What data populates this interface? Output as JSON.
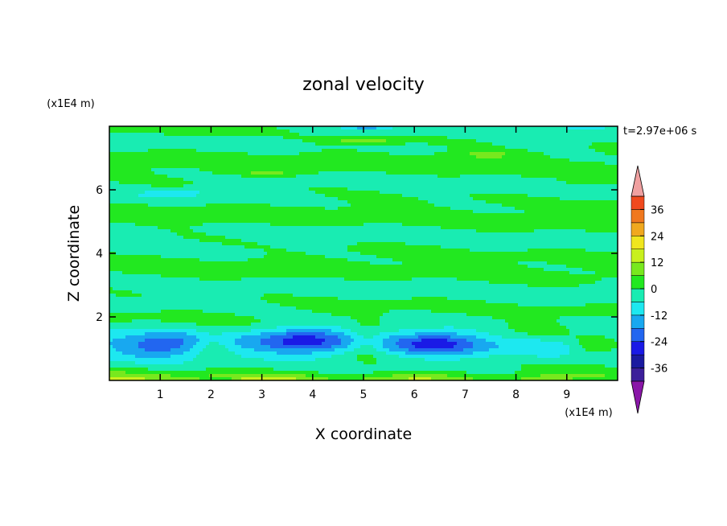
{
  "chart_data": {
    "type": "contour",
    "title": "zonal velocity",
    "xlabel": "X coordinate",
    "ylabel": "Z coordinate",
    "x_unit_label": "(x1E4 m)",
    "y_unit_label": "(x1E4 m)",
    "time_label": "t=2.97e+06 s",
    "xlim": [
      0,
      10
    ],
    "ylim": [
      0,
      8
    ],
    "x_ticks": [
      1,
      2,
      3,
      4,
      5,
      6,
      7,
      8,
      9
    ],
    "x_tick_labels": [
      "1",
      "2",
      "3",
      "4",
      "5",
      "6",
      "7",
      "8",
      "9"
    ],
    "y_ticks": [
      2,
      4,
      6
    ],
    "y_tick_labels": [
      "2",
      "4",
      "6"
    ],
    "colorbar": {
      "levels": [
        -42,
        -36,
        -30,
        -24,
        -18,
        -12,
        -6,
        0,
        6,
        12,
        18,
        24,
        30,
        36,
        42
      ],
      "tick_values": [
        36,
        24,
        12,
        0,
        -12,
        -24,
        -36
      ],
      "tick_labels": [
        "36",
        "24",
        "12",
        "0",
        "-12",
        "-24",
        "-36"
      ],
      "colors": [
        "#7a1fa0",
        "#3c1f9a",
        "#1a1aa0",
        "#1a1ae6",
        "#2266f0",
        "#18a8f0",
        "#1de8f0",
        "#19ecb2",
        "#22e820",
        "#78e81e",
        "#c8f01e",
        "#f0e61e",
        "#f0a81e",
        "#f0781e",
        "#f04a1e",
        "#e61e1e"
      ],
      "over_color": "#f0a0a0",
      "under_color": "#8a16a8",
      "extend": "both"
    },
    "field_summary": {
      "description_bands": [
        {
          "z": [
            0.0,
            0.25
          ],
          "value": 10
        },
        {
          "z": [
            0.25,
            2.0
          ],
          "value": -6
        },
        {
          "z": [
            2.0,
            8.0
          ],
          "value": 0
        }
      ],
      "features": [
        {
          "x": 1.0,
          "z": 1.1,
          "value": -13
        },
        {
          "x": 2.0,
          "z": 1.05,
          "value": 7
        },
        {
          "x": 3.8,
          "z": 1.3,
          "value": -15
        },
        {
          "x": 5.1,
          "z": 1.2,
          "value": 7
        },
        {
          "x": 6.5,
          "z": 1.2,
          "value": -15
        },
        {
          "x": 9.5,
          "z": 1.2,
          "value": 12
        },
        {
          "x": 5.0,
          "z": 7.5,
          "value": 10
        },
        {
          "x": 3.0,
          "z": 6.5,
          "value": 6
        },
        {
          "x": 7.4,
          "z": 7.1,
          "value": 7
        },
        {
          "x": 5.0,
          "z": 7.95,
          "value": -10
        }
      ]
    }
  }
}
